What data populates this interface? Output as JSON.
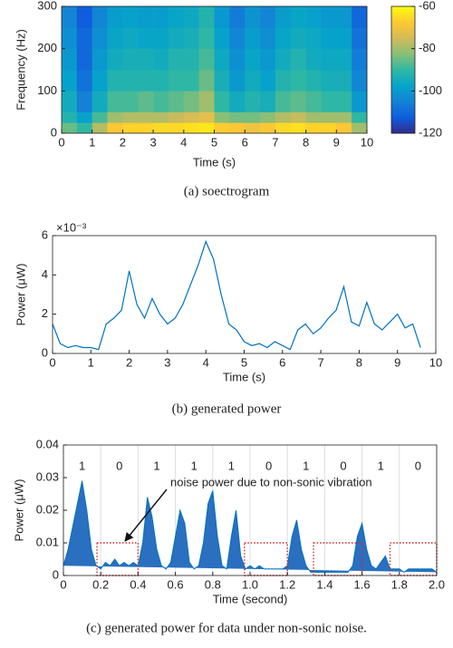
{
  "chart_data": [
    {
      "type": "heatmap",
      "caption": "(a)  soectrogram",
      "xlabel": "Time (s)",
      "ylabel": "Frequency (Hz)",
      "x_edges": [
        0,
        0.5,
        1,
        1.5,
        2,
        2.5,
        3,
        3.5,
        4,
        4.5,
        5,
        5.5,
        6,
        6.5,
        7,
        7.5,
        8,
        8.5,
        9,
        9.5,
        10
      ],
      "y_edges": [
        0,
        25,
        50,
        100,
        150,
        200,
        250,
        300
      ],
      "z": [
        [
          -85,
          -90,
          -78,
          -68,
          -66,
          -66,
          -65,
          -65,
          -64,
          -63,
          -67,
          -68,
          -70,
          -68,
          -65,
          -64,
          -66,
          -66,
          -68,
          -80
        ],
        [
          -92,
          -98,
          -88,
          -80,
          -78,
          -78,
          -78,
          -76,
          -74,
          -72,
          -82,
          -84,
          -84,
          -82,
          -78,
          -76,
          -80,
          -80,
          -80,
          -90
        ],
        [
          -95,
          -105,
          -95,
          -88,
          -88,
          -86,
          -88,
          -86,
          -84,
          -80,
          -90,
          -95,
          -92,
          -94,
          -88,
          -86,
          -88,
          -90,
          -90,
          -100
        ],
        [
          -98,
          -108,
          -98,
          -92,
          -92,
          -92,
          -92,
          -90,
          -90,
          -85,
          -94,
          -100,
          -95,
          -98,
          -92,
          -90,
          -92,
          -94,
          -94,
          -104
        ],
        [
          -100,
          -110,
          -100,
          -95,
          -94,
          -94,
          -95,
          -92,
          -92,
          -88,
          -96,
          -102,
          -97,
          -100,
          -95,
          -92,
          -95,
          -96,
          -96,
          -106
        ],
        [
          -102,
          -110,
          -102,
          -97,
          -96,
          -97,
          -97,
          -95,
          -94,
          -90,
          -98,
          -104,
          -99,
          -102,
          -97,
          -95,
          -96,
          -98,
          -98,
          -108
        ],
        [
          -104,
          -112,
          -104,
          -99,
          -98,
          -99,
          -99,
          -97,
          -96,
          -92,
          -100,
          -106,
          -101,
          -104,
          -99,
          -97,
          -98,
          -100,
          -100,
          -110
        ]
      ],
      "xlim": [
        0,
        10
      ],
      "xticks": [
        0,
        1,
        2,
        3,
        4,
        5,
        6,
        7,
        8,
        9,
        10
      ],
      "ylim": [
        0,
        300
      ],
      "yticks": [
        0,
        100,
        200,
        300
      ],
      "clim": [
        -120,
        -60
      ],
      "cticks": [
        -60,
        -80,
        -100,
        -120
      ],
      "colormap": [
        "#352a87",
        "#0f5cdd",
        "#1481d6",
        "#06a4ca",
        "#2eb7a4",
        "#87bf77",
        "#d1bb59",
        "#fec832",
        "#f9fb0e"
      ],
      "grid": false
    },
    {
      "type": "line",
      "caption": "(b)  generated power",
      "xlabel": "Time (s)",
      "ylabel": "Power (μW)",
      "y_multiplier": "×10⁻³",
      "color": "#0072bd",
      "x": [
        0,
        0.2,
        0.4,
        0.6,
        0.8,
        1,
        1.2,
        1.4,
        1.6,
        1.8,
        2,
        2.2,
        2.4,
        2.6,
        2.8,
        3,
        3.2,
        3.4,
        3.6,
        3.8,
        4,
        4.2,
        4.4,
        4.6,
        4.8,
        5,
        5.2,
        5.4,
        5.6,
        5.8,
        6,
        6.2,
        6.4,
        6.6,
        6.8,
        7,
        7.2,
        7.4,
        7.6,
        7.8,
        8,
        8.2,
        8.4,
        8.6,
        8.8,
        9,
        9.2,
        9.4,
        9.6
      ],
      "values": [
        1.5,
        0.5,
        0.3,
        0.4,
        0.3,
        0.3,
        0.2,
        1.5,
        1.8,
        2.2,
        4.2,
        2.5,
        1.8,
        2.8,
        2,
        1.5,
        1.8,
        2.5,
        3.5,
        4.5,
        5.7,
        4.8,
        3,
        1.5,
        1.2,
        0.6,
        0.4,
        0.5,
        0.3,
        0.6,
        0.4,
        0.2,
        1.2,
        1.5,
        1,
        1.3,
        1.8,
        2.2,
        3.4,
        1.6,
        1.4,
        2.6,
        1.5,
        1.2,
        1.6,
        2,
        1.3,
        1.5,
        0.3
      ],
      "xlim": [
        0,
        10
      ],
      "xticks": [
        0,
        1,
        2,
        3,
        4,
        5,
        6,
        7,
        8,
        9,
        10
      ],
      "ylim": [
        0,
        6
      ],
      "yticks": [
        0,
        2,
        4,
        6
      ],
      "grid": false
    },
    {
      "type": "area",
      "caption": "(c) generated power for data under non-sonic noise.",
      "xlabel": "Time (second)",
      "ylabel": "Power (μW)",
      "color": "#0072bd",
      "fill": "#2a6fc0",
      "x": [
        0,
        0.025,
        0.05,
        0.075,
        0.1,
        0.125,
        0.15,
        0.175,
        0.2,
        0.225,
        0.25,
        0.275,
        0.3,
        0.325,
        0.35,
        0.375,
        0.4,
        0.425,
        0.45,
        0.475,
        0.5,
        0.525,
        0.55,
        0.575,
        0.6,
        0.625,
        0.65,
        0.675,
        0.7,
        0.725,
        0.75,
        0.775,
        0.8,
        0.825,
        0.85,
        0.875,
        0.9,
        0.925,
        0.95,
        0.975,
        1,
        1.025,
        1.05,
        1.075,
        1.1,
        1.125,
        1.15,
        1.175,
        1.2,
        1.225,
        1.25,
        1.275,
        1.3,
        1.325,
        1.35,
        1.375,
        1.4,
        1.425,
        1.45,
        1.475,
        1.5,
        1.525,
        1.55,
        1.575,
        1.6,
        1.625,
        1.65,
        1.675,
        1.7,
        1.725,
        1.75,
        1.775,
        1.8,
        1.825,
        1.85,
        1.875,
        1.9,
        1.925,
        1.95,
        1.975,
        2
      ],
      "values": [
        0.003,
        0.008,
        0.015,
        0.022,
        0.029,
        0.02,
        0.008,
        0.003,
        0.002,
        0.004,
        0.003,
        0.005,
        0.003,
        0.004,
        0.003,
        0.004,
        0.003,
        0.01,
        0.024,
        0.018,
        0.008,
        0.003,
        0.002,
        0.004,
        0.012,
        0.02,
        0.016,
        0.004,
        0.002,
        0.003,
        0.01,
        0.022,
        0.026,
        0.012,
        0.003,
        0.002,
        0.012,
        0.02,
        0.006,
        0.002,
        0.003,
        0.002,
        0.003,
        0.002,
        0.002,
        0.002,
        0.002,
        0.002,
        0.003,
        0.012,
        0.017,
        0.008,
        0.003,
        0.001,
        0.001,
        0.001,
        0.001,
        0.001,
        0.001,
        0.001,
        0.001,
        0.001,
        0.003,
        0.012,
        0.016,
        0.008,
        0.003,
        0.002,
        0.004,
        0.006,
        0.002,
        0.002,
        0.002,
        0.001,
        0.002,
        0.002,
        0.002,
        0.002,
        0.002,
        0.002,
        0.001
      ],
      "xlim": [
        0,
        2
      ],
      "xticks": [
        0,
        0.2,
        0.4,
        0.6,
        0.8,
        {
          "value": 1,
          "label": "1.0"
        },
        1.2,
        1.4,
        1.6,
        1.8,
        {
          "value": 2,
          "label": "2.0"
        }
      ],
      "ylim": [
        0,
        0.04
      ],
      "yticks": [
        0,
        0.01,
        0.02,
        0.03,
        0.04
      ],
      "grid": true,
      "bit_labels": [
        "1",
        "0",
        "1",
        "1",
        "1",
        "0",
        "1",
        "0",
        "1",
        "0"
      ],
      "noise_regions": [
        {
          "x": [
            0.18,
            0.4
          ],
          "y": [
            0,
            0.01
          ]
        },
        {
          "x": [
            0.97,
            1.2
          ],
          "y": [
            0,
            0.01
          ]
        },
        {
          "x": [
            1.34,
            1.6
          ],
          "y": [
            0,
            0.01
          ]
        },
        {
          "x": [
            1.75,
            2
          ],
          "y": [
            0,
            0.01
          ]
        }
      ],
      "annotation": "noise power due to non-sonic vibration"
    }
  ]
}
